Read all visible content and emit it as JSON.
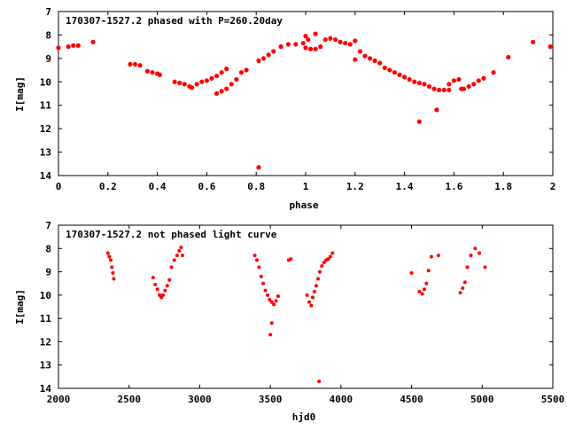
{
  "chart_data": [
    {
      "type": "scatter",
      "title": "170307-1527.2 phased with P=260.20day",
      "xlabel": "phase",
      "ylabel": "I[mag]",
      "xlim": [
        0,
        2
      ],
      "ylim": [
        7,
        14
      ],
      "y_inverted": true,
      "x_ticks": [
        "0",
        "0.2",
        "0.4",
        "0.6",
        "0.8",
        "1",
        "1.2",
        "1.4",
        "1.6",
        "1.8",
        "2"
      ],
      "y_ticks": [
        "7",
        "8",
        "9",
        "10",
        "11",
        "12",
        "13",
        "14"
      ],
      "marker_color": "#ff0000",
      "grid": false,
      "points": [
        [
          0.0,
          8.55
        ],
        [
          0.04,
          8.5
        ],
        [
          0.06,
          8.45
        ],
        [
          0.08,
          8.45
        ],
        [
          0.14,
          8.3
        ],
        [
          0.29,
          9.25
        ],
        [
          0.31,
          9.25
        ],
        [
          0.33,
          9.3
        ],
        [
          0.36,
          9.55
        ],
        [
          0.38,
          9.6
        ],
        [
          0.4,
          9.65
        ],
        [
          0.41,
          9.7
        ],
        [
          0.47,
          10.0
        ],
        [
          0.49,
          10.05
        ],
        [
          0.51,
          10.1
        ],
        [
          0.53,
          10.2
        ],
        [
          0.54,
          10.25
        ],
        [
          0.56,
          10.1
        ],
        [
          0.58,
          10.0
        ],
        [
          0.6,
          9.95
        ],
        [
          0.62,
          9.85
        ],
        [
          0.64,
          9.75
        ],
        [
          0.66,
          9.6
        ],
        [
          0.68,
          9.45
        ],
        [
          0.64,
          10.5
        ],
        [
          0.66,
          10.4
        ],
        [
          0.68,
          10.3
        ],
        [
          0.7,
          10.1
        ],
        [
          0.72,
          9.9
        ],
        [
          0.74,
          9.6
        ],
        [
          0.76,
          9.5
        ],
        [
          0.81,
          13.65
        ],
        [
          0.81,
          9.1
        ],
        [
          0.83,
          9.0
        ],
        [
          0.85,
          8.85
        ],
        [
          0.87,
          8.7
        ],
        [
          0.9,
          8.5
        ],
        [
          0.93,
          8.4
        ],
        [
          0.96,
          8.4
        ],
        [
          0.99,
          8.35
        ],
        [
          1.01,
          8.2
        ],
        [
          1.0,
          8.05
        ],
        [
          1.04,
          7.95
        ],
        [
          1.0,
          8.55
        ],
        [
          1.02,
          8.6
        ],
        [
          1.04,
          8.6
        ],
        [
          1.06,
          8.5
        ],
        [
          1.08,
          8.2
        ],
        [
          1.1,
          8.15
        ],
        [
          1.12,
          8.2
        ],
        [
          1.14,
          8.3
        ],
        [
          1.16,
          8.35
        ],
        [
          1.18,
          8.4
        ],
        [
          1.2,
          8.25
        ],
        [
          1.2,
          9.05
        ],
        [
          1.22,
          8.7
        ],
        [
          1.24,
          8.9
        ],
        [
          1.26,
          9.0
        ],
        [
          1.28,
          9.1
        ],
        [
          1.3,
          9.2
        ],
        [
          1.32,
          9.4
        ],
        [
          1.34,
          9.5
        ],
        [
          1.36,
          9.6
        ],
        [
          1.38,
          9.7
        ],
        [
          1.4,
          9.8
        ],
        [
          1.42,
          9.9
        ],
        [
          1.44,
          10.0
        ],
        [
          1.46,
          10.05
        ],
        [
          1.48,
          10.1
        ],
        [
          1.5,
          10.2
        ],
        [
          1.52,
          10.3
        ],
        [
          1.54,
          10.35
        ],
        [
          1.56,
          10.35
        ],
        [
          1.46,
          11.7
        ],
        [
          1.53,
          11.2
        ],
        [
          1.58,
          10.1
        ],
        [
          1.58,
          10.35
        ],
        [
          1.6,
          9.95
        ],
        [
          1.62,
          9.9
        ],
        [
          1.63,
          10.3
        ],
        [
          1.64,
          10.3
        ],
        [
          1.66,
          10.2
        ],
        [
          1.68,
          10.1
        ],
        [
          1.7,
          9.95
        ],
        [
          1.72,
          9.85
        ],
        [
          1.76,
          9.6
        ],
        [
          1.82,
          8.95
        ],
        [
          1.92,
          8.3
        ],
        [
          1.99,
          8.5
        ]
      ]
    },
    {
      "type": "scatter",
      "title": "170307-1527.2 not phased light curve",
      "xlabel": "hjd0",
      "ylabel": "I[mag]",
      "xlim": [
        2000,
        5500
      ],
      "ylim": [
        7,
        14
      ],
      "y_inverted": true,
      "x_ticks": [
        "2000",
        "2500",
        "3000",
        "3500",
        "4000",
        "4500",
        "5000",
        "5500"
      ],
      "y_ticks": [
        "7",
        "8",
        "9",
        "10",
        "11",
        "12",
        "13",
        "14"
      ],
      "marker_color": "#ff0000",
      "grid": false,
      "points": [
        [
          2350,
          8.2
        ],
        [
          2360,
          8.35
        ],
        [
          2370,
          8.5
        ],
        [
          2378,
          8.8
        ],
        [
          2385,
          9.05
        ],
        [
          2392,
          9.3
        ],
        [
          2670,
          9.25
        ],
        [
          2685,
          9.55
        ],
        [
          2700,
          9.75
        ],
        [
          2715,
          10.0
        ],
        [
          2728,
          10.1
        ],
        [
          2740,
          10.0
        ],
        [
          2755,
          9.8
        ],
        [
          2770,
          9.6
        ],
        [
          2785,
          9.35
        ],
        [
          2800,
          8.8
        ],
        [
          2820,
          8.5
        ],
        [
          2840,
          8.3
        ],
        [
          2855,
          8.1
        ],
        [
          2868,
          7.95
        ],
        [
          2878,
          8.3
        ],
        [
          3390,
          8.3
        ],
        [
          3405,
          8.5
        ],
        [
          3420,
          8.8
        ],
        [
          3435,
          9.2
        ],
        [
          3450,
          9.5
        ],
        [
          3465,
          9.8
        ],
        [
          3480,
          10.0
        ],
        [
          3495,
          10.2
        ],
        [
          3510,
          10.3
        ],
        [
          3525,
          10.4
        ],
        [
          3540,
          10.25
        ],
        [
          3555,
          10.05
        ],
        [
          3500,
          11.7
        ],
        [
          3510,
          11.2
        ],
        [
          3630,
          8.5
        ],
        [
          3645,
          8.45
        ],
        [
          3760,
          10.0
        ],
        [
          3775,
          10.3
        ],
        [
          3790,
          10.45
        ],
        [
          3800,
          10.1
        ],
        [
          3812,
          9.85
        ],
        [
          3825,
          9.6
        ],
        [
          3838,
          9.3
        ],
        [
          3850,
          9.0
        ],
        [
          3865,
          8.75
        ],
        [
          3880,
          8.6
        ],
        [
          3895,
          8.5
        ],
        [
          3910,
          8.45
        ],
        [
          3925,
          8.35
        ],
        [
          3940,
          8.2
        ],
        [
          3845,
          13.7
        ],
        [
          4500,
          9.05
        ],
        [
          4555,
          9.85
        ],
        [
          4575,
          9.95
        ],
        [
          4590,
          9.75
        ],
        [
          4605,
          9.5
        ],
        [
          4620,
          8.95
        ],
        [
          4640,
          8.35
        ],
        [
          4690,
          8.3
        ],
        [
          4845,
          9.9
        ],
        [
          4862,
          9.7
        ],
        [
          4878,
          9.45
        ],
        [
          4895,
          8.8
        ],
        [
          4920,
          8.3
        ],
        [
          4950,
          8.0
        ],
        [
          4980,
          8.2
        ],
        [
          5020,
          8.8
        ]
      ]
    }
  ]
}
